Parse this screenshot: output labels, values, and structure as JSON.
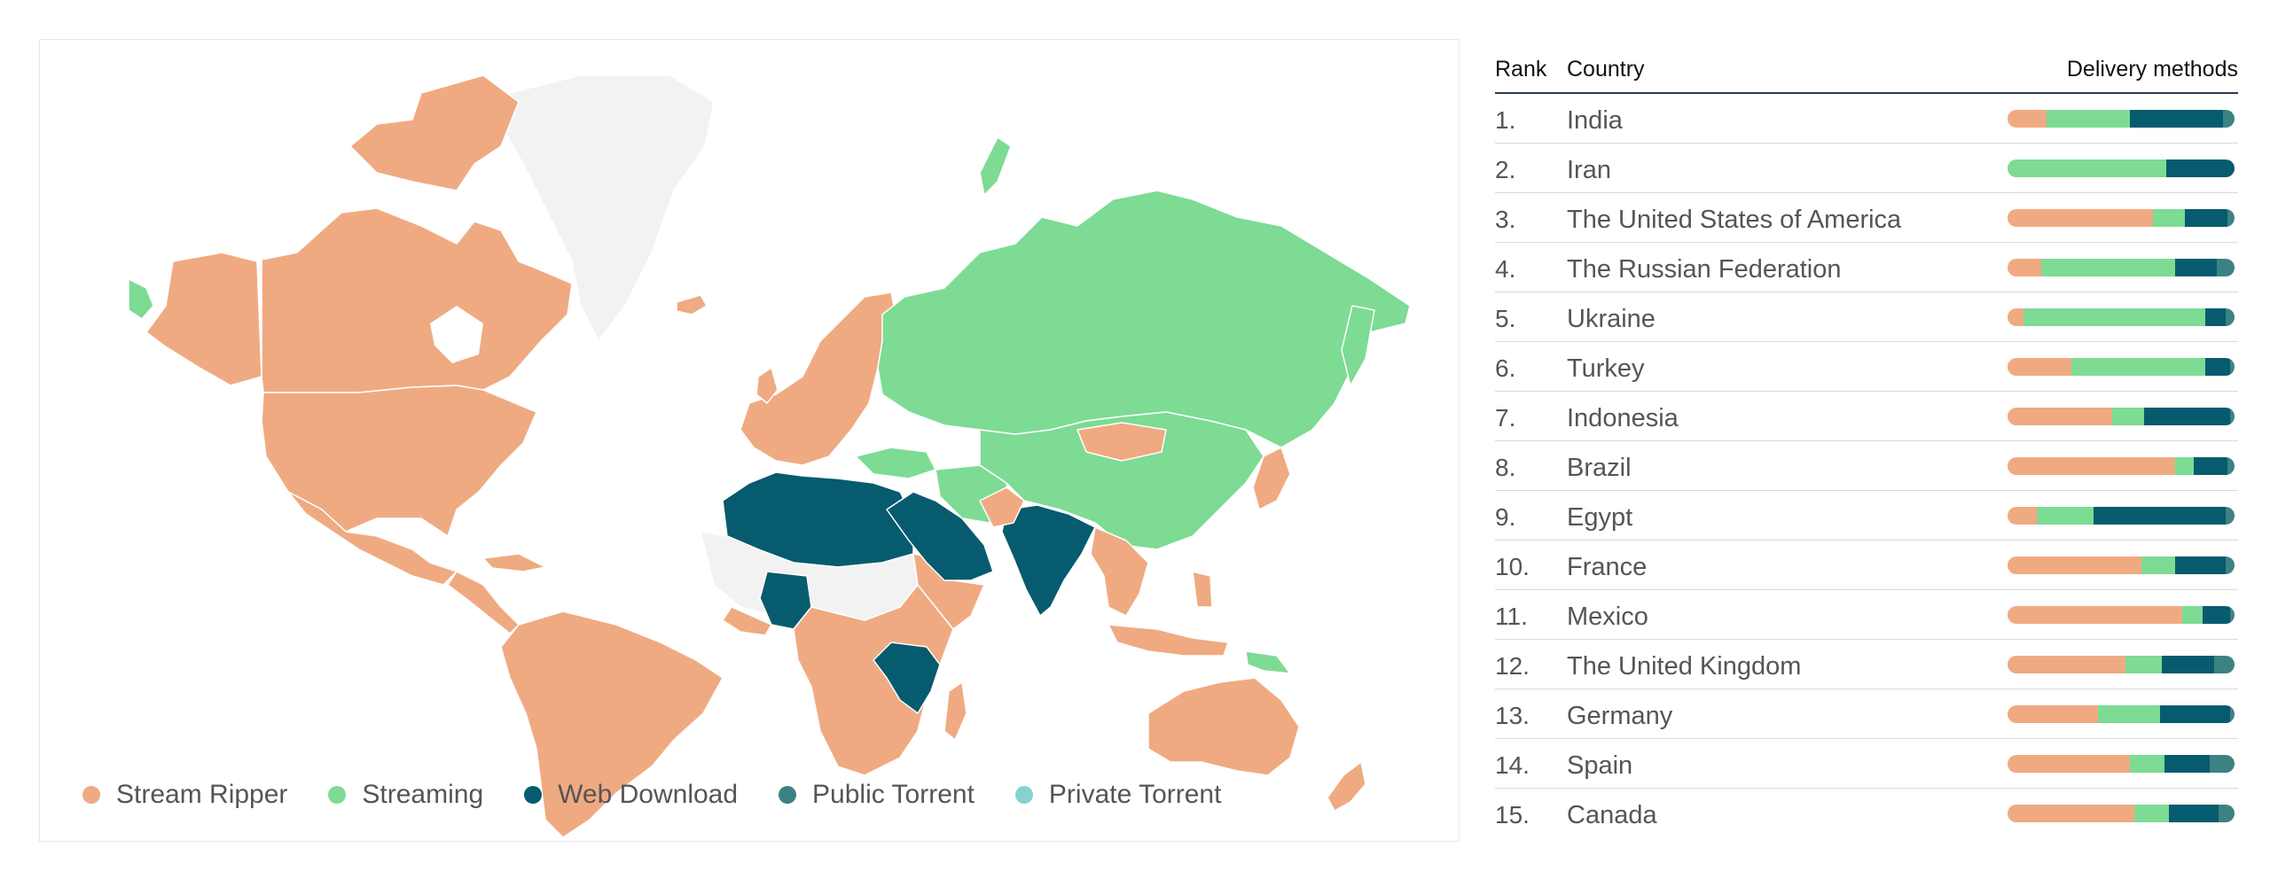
{
  "colors": {
    "stream_ripper": "#f0aa82",
    "streaming": "#7ddb94",
    "web_download": "#075b6e",
    "public_torrent": "#3d8283",
    "private_torrent": "#85d2d2",
    "no_data": "#f2f2f2"
  },
  "legend": [
    {
      "key": "stream_ripper",
      "label": "Stream Ripper"
    },
    {
      "key": "streaming",
      "label": "Streaming"
    },
    {
      "key": "web_download",
      "label": "Web Download"
    },
    {
      "key": "public_torrent",
      "label": "Public Torrent"
    },
    {
      "key": "private_torrent",
      "label": "Private Torrent"
    }
  ],
  "table": {
    "headers": {
      "rank": "Rank",
      "country": "Country",
      "methods": "Delivery methods"
    },
    "rows": [
      {
        "rank": "1.",
        "country": "India",
        "shares": {
          "stream_ripper": 0.17,
          "streaming": 0.37,
          "web_download": 0.41,
          "public_torrent": 0.05,
          "private_torrent": 0
        }
      },
      {
        "rank": "2.",
        "country": "Iran",
        "shares": {
          "stream_ripper": 0,
          "streaming": 0.7,
          "web_download": 0.3,
          "public_torrent": 0,
          "private_torrent": 0
        }
      },
      {
        "rank": "3.",
        "country": "The United States of America",
        "shares": {
          "stream_ripper": 0.64,
          "streaming": 0.14,
          "web_download": 0.19,
          "public_torrent": 0.03,
          "private_torrent": 0
        }
      },
      {
        "rank": "4.",
        "country": "The Russian Federation",
        "shares": {
          "stream_ripper": 0.15,
          "streaming": 0.59,
          "web_download": 0.18,
          "public_torrent": 0.08,
          "private_torrent": 0
        }
      },
      {
        "rank": "5.",
        "country": "Ukraine",
        "shares": {
          "stream_ripper": 0.07,
          "streaming": 0.8,
          "web_download": 0.09,
          "public_torrent": 0.04,
          "private_torrent": 0
        }
      },
      {
        "rank": "6.",
        "country": "Turkey",
        "shares": {
          "stream_ripper": 0.28,
          "streaming": 0.59,
          "web_download": 0.11,
          "public_torrent": 0.02,
          "private_torrent": 0
        }
      },
      {
        "rank": "7.",
        "country": "Indonesia",
        "shares": {
          "stream_ripper": 0.46,
          "streaming": 0.14,
          "web_download": 0.38,
          "public_torrent": 0.02,
          "private_torrent": 0
        }
      },
      {
        "rank": "8.",
        "country": "Brazil",
        "shares": {
          "stream_ripper": 0.74,
          "streaming": 0.08,
          "web_download": 0.15,
          "public_torrent": 0.03,
          "private_torrent": 0
        }
      },
      {
        "rank": "9.",
        "country": "Egypt",
        "shares": {
          "stream_ripper": 0.13,
          "streaming": 0.25,
          "web_download": 0.58,
          "public_torrent": 0.04,
          "private_torrent": 0
        }
      },
      {
        "rank": "10.",
        "country": "France",
        "shares": {
          "stream_ripper": 0.59,
          "streaming": 0.15,
          "web_download": 0.22,
          "public_torrent": 0.04,
          "private_torrent": 0
        }
      },
      {
        "rank": "11.",
        "country": "Mexico",
        "shares": {
          "stream_ripper": 0.77,
          "streaming": 0.09,
          "web_download": 0.12,
          "public_torrent": 0.02,
          "private_torrent": 0
        }
      },
      {
        "rank": "12.",
        "country": "The United Kingdom",
        "shares": {
          "stream_ripper": 0.52,
          "streaming": 0.16,
          "web_download": 0.23,
          "public_torrent": 0.09,
          "private_torrent": 0
        }
      },
      {
        "rank": "13.",
        "country": "Germany",
        "shares": {
          "stream_ripper": 0.4,
          "streaming": 0.27,
          "web_download": 0.31,
          "public_torrent": 0.02,
          "private_torrent": 0
        }
      },
      {
        "rank": "14.",
        "country": "Spain",
        "shares": {
          "stream_ripper": 0.54,
          "streaming": 0.15,
          "web_download": 0.2,
          "public_torrent": 0.11,
          "private_torrent": 0
        }
      },
      {
        "rank": "15.",
        "country": "Canada",
        "shares": {
          "stream_ripper": 0.56,
          "streaming": 0.15,
          "web_download": 0.22,
          "public_torrent": 0.07,
          "private_torrent": 0
        }
      }
    ]
  }
}
